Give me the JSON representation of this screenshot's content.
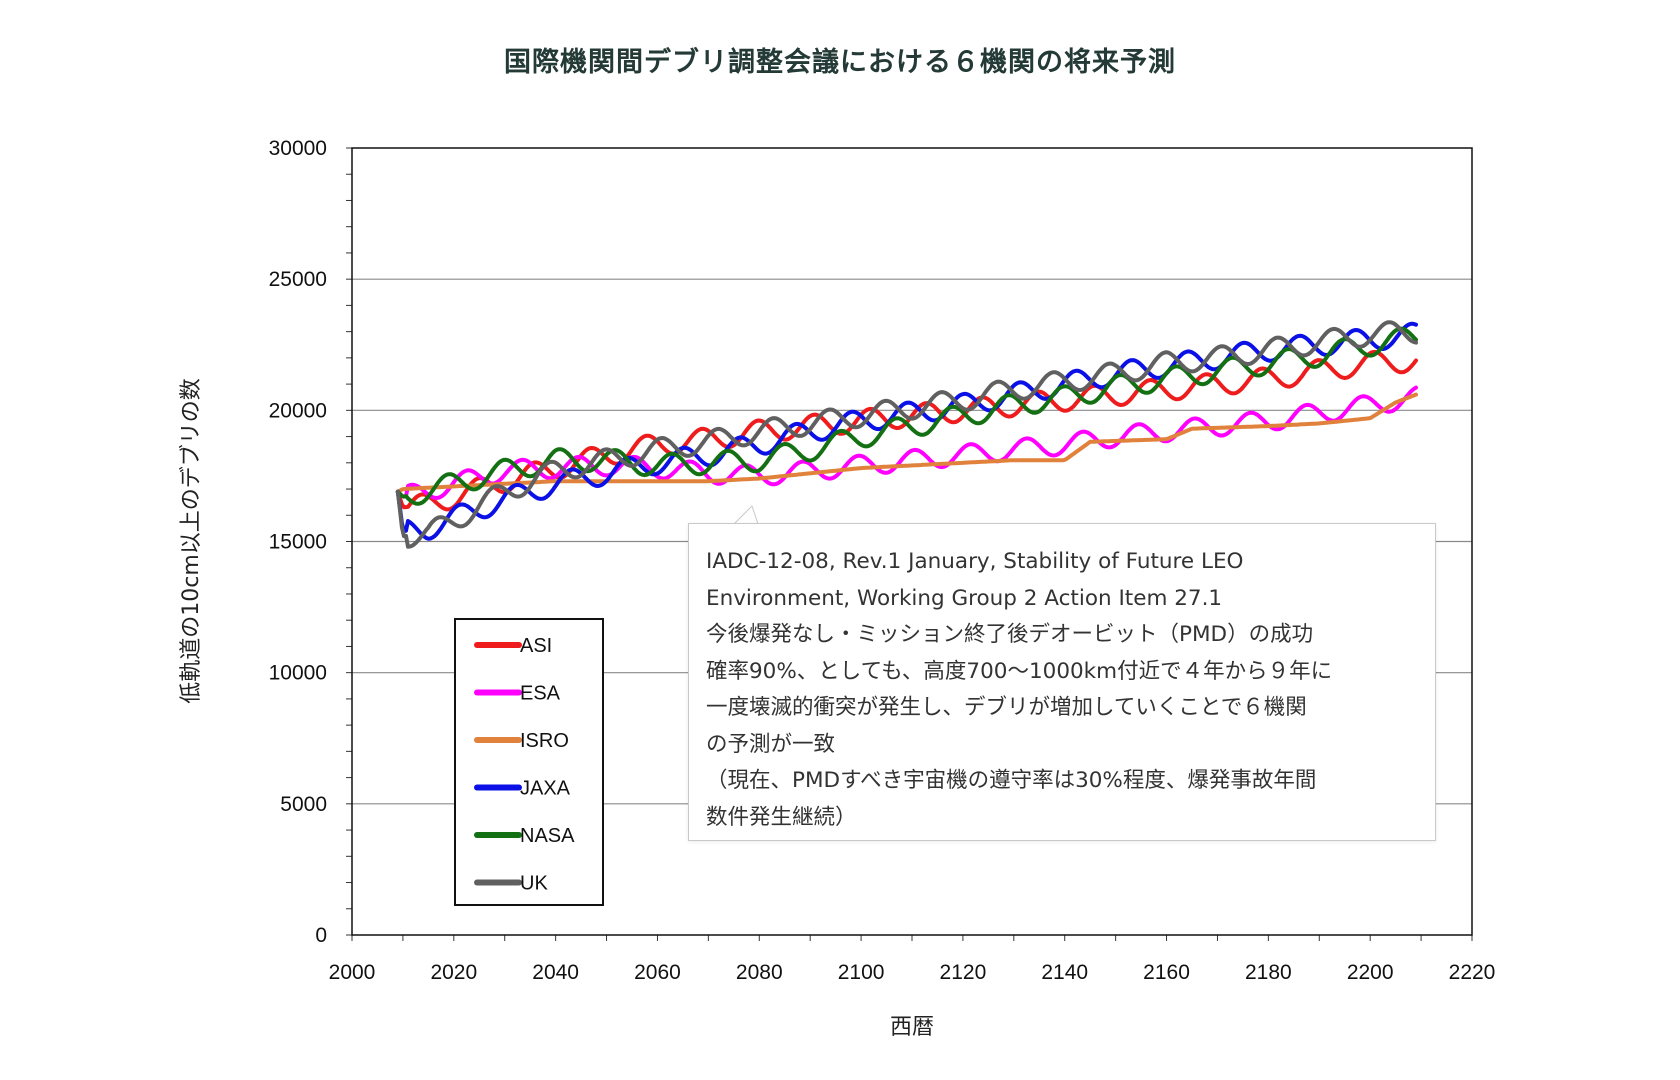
{
  "chart_data": {
    "type": "line",
    "title": "国際機関間デブリ調整会議における６機関の将来予測",
    "xlabel": "西暦",
    "ylabel": "低軌道の10cm以上のデブリの数",
    "xlim": [
      2000,
      2220
    ],
    "ylim": [
      0,
      30000
    ],
    "x_ticks": [
      "2000",
      "2020",
      "2040",
      "2060",
      "2080",
      "2100",
      "2120",
      "2140",
      "2160",
      "2180",
      "2200",
      "2220"
    ],
    "y_ticks": [
      "0",
      "5000",
      "10000",
      "15000",
      "20000",
      "25000",
      "30000"
    ],
    "grid": "horizontal",
    "legend_position": "bottom-left",
    "series": [
      {
        "name": "ASI",
        "color": "#ee1c1c",
        "x": [
          2009,
          2010,
          2015,
          2020,
          2030,
          2040,
          2050,
          2060,
          2070,
          2080,
          2090,
          2100,
          2110,
          2120,
          2130,
          2140,
          2150,
          2160,
          2170,
          2180,
          2190,
          2200,
          2209
        ],
        "y": [
          16900,
          16300,
          16400,
          16700,
          17300,
          17800,
          18300,
          18700,
          18900,
          19200,
          19400,
          19600,
          19800,
          20000,
          20200,
          20400,
          20600,
          20800,
          21000,
          21200,
          21500,
          21800,
          21900
        ]
      },
      {
        "name": "ESA",
        "color": "#ff00ff",
        "x": [
          2009,
          2010,
          2020,
          2030,
          2040,
          2050,
          2060,
          2070,
          2080,
          2090,
          2100,
          2110,
          2120,
          2130,
          2140,
          2150,
          2160,
          2170,
          2180,
          2190,
          2200,
          2209
        ],
        "y": [
          16900,
          16700,
          17200,
          17700,
          17800,
          17900,
          17800,
          17600,
          17500,
          17700,
          17900,
          18100,
          18300,
          18500,
          18700,
          19000,
          19200,
          19400,
          19600,
          19900,
          20200,
          20500
        ]
      },
      {
        "name": "ISRO",
        "color": "#e0813c",
        "x": [
          2009,
          2010,
          2020,
          2030,
          2040,
          2050,
          2060,
          2070,
          2080,
          2090,
          2100,
          2110,
          2120,
          2130,
          2140,
          2145,
          2160,
          2165,
          2180,
          2190,
          2200,
          2205,
          2209
        ],
        "y": [
          16900,
          17000,
          17100,
          17200,
          17300,
          17300,
          17300,
          17300,
          17400,
          17600,
          17800,
          17900,
          18000,
          18100,
          18100,
          18800,
          18900,
          19300,
          19400,
          19500,
          19700,
          20300,
          20600
        ]
      },
      {
        "name": "JAXA",
        "color": "#0a10e6",
        "x": [
          2009,
          2010,
          2015,
          2020,
          2030,
          2040,
          2050,
          2060,
          2070,
          2080,
          2090,
          2100,
          2110,
          2120,
          2130,
          2140,
          2150,
          2160,
          2170,
          2180,
          2190,
          2200,
          2209
        ],
        "y": [
          16900,
          15400,
          15500,
          15900,
          16600,
          17200,
          17600,
          18000,
          18300,
          18700,
          19200,
          19600,
          19900,
          20200,
          20600,
          21000,
          21400,
          21700,
          22000,
          22300,
          22500,
          22700,
          22900
        ]
      },
      {
        "name": "NASA",
        "color": "#137013",
        "x": [
          2009,
          2010,
          2020,
          2030,
          2040,
          2050,
          2060,
          2070,
          2080,
          2090,
          2100,
          2110,
          2120,
          2130,
          2140,
          2150,
          2160,
          2170,
          2180,
          2190,
          2200,
          2209
        ],
        "y": [
          16900,
          16700,
          17200,
          17700,
          18100,
          18100,
          17900,
          18000,
          18100,
          18500,
          19000,
          19400,
          19800,
          20200,
          20500,
          20900,
          21200,
          21500,
          21800,
          22100,
          22500,
          22800
        ]
      },
      {
        "name": "UK",
        "color": "#606060",
        "x": [
          2009,
          2010,
          2015,
          2020,
          2030,
          2040,
          2050,
          2060,
          2070,
          2080,
          2090,
          2100,
          2110,
          2120,
          2130,
          2140,
          2150,
          2160,
          2170,
          2180,
          2190,
          2200,
          2209
        ],
        "y": [
          16900,
          15200,
          15300,
          15800,
          16900,
          17700,
          18100,
          18500,
          18800,
          19200,
          19500,
          19800,
          20100,
          20400,
          20800,
          21100,
          21400,
          21800,
          22000,
          22300,
          22600,
          22900,
          23000
        ]
      }
    ],
    "annotation": {
      "lines": [
        "IADC-12-08, Rev.1 January, Stability of Future LEO",
        "Environment, Working Group 2 Action Item 27.1",
        "今後爆発なし・ミッション終了後デオービット（PMD）の成功",
        "確率90%、としても、高度700～1000km付近で４年から９年に",
        "一度壊滅的衝突が発生し、デブリが増加していくことで６機関",
        "の予測が一致",
        "（現在、PMDすべき宇宙機の遵守率は30%程度、爆発事故年間",
        "数件発生継続）"
      ]
    }
  }
}
